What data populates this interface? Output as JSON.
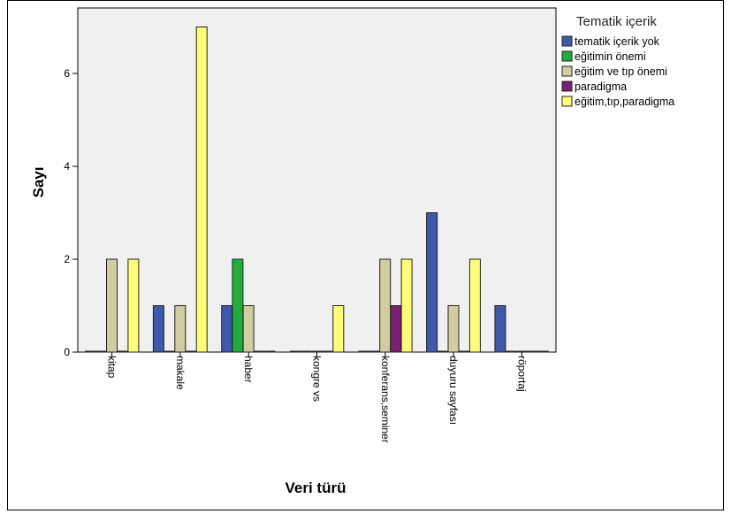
{
  "chart_data": {
    "type": "bar",
    "xlabel": "Veri türü",
    "ylabel": "Sayı",
    "ylim": [
      0,
      7.4
    ],
    "yticks": [
      0,
      2,
      4,
      6
    ],
    "categories": [
      "kitap",
      "makale",
      "haber",
      "kongre vs",
      "konferans,seminer",
      "duyuru sayfası",
      "röportaj"
    ],
    "legend": {
      "title": "Tematik içerik",
      "position": "right"
    },
    "grid": false,
    "series": [
      {
        "name": "tematik içerik yok",
        "color": "#3E58AC",
        "values": [
          0,
          1,
          1,
          0,
          0,
          3,
          1
        ]
      },
      {
        "name": "eğitimin önemi",
        "color": "#1FAE3A",
        "values": [
          0,
          0,
          2,
          0,
          0,
          0,
          0
        ]
      },
      {
        "name": "eğitim ve tıp önemi",
        "color": "#D2CCA1",
        "values": [
          2,
          1,
          1,
          0,
          2,
          1,
          0
        ]
      },
      {
        "name": "paradigma",
        "color": "#7A1F71",
        "values": [
          0,
          0,
          0,
          0,
          1,
          0,
          0
        ]
      },
      {
        "name": "eğitim,tıp,paradigma",
        "color": "#FFFF73",
        "values": [
          2,
          7,
          0,
          1,
          2,
          2,
          0
        ]
      }
    ]
  }
}
